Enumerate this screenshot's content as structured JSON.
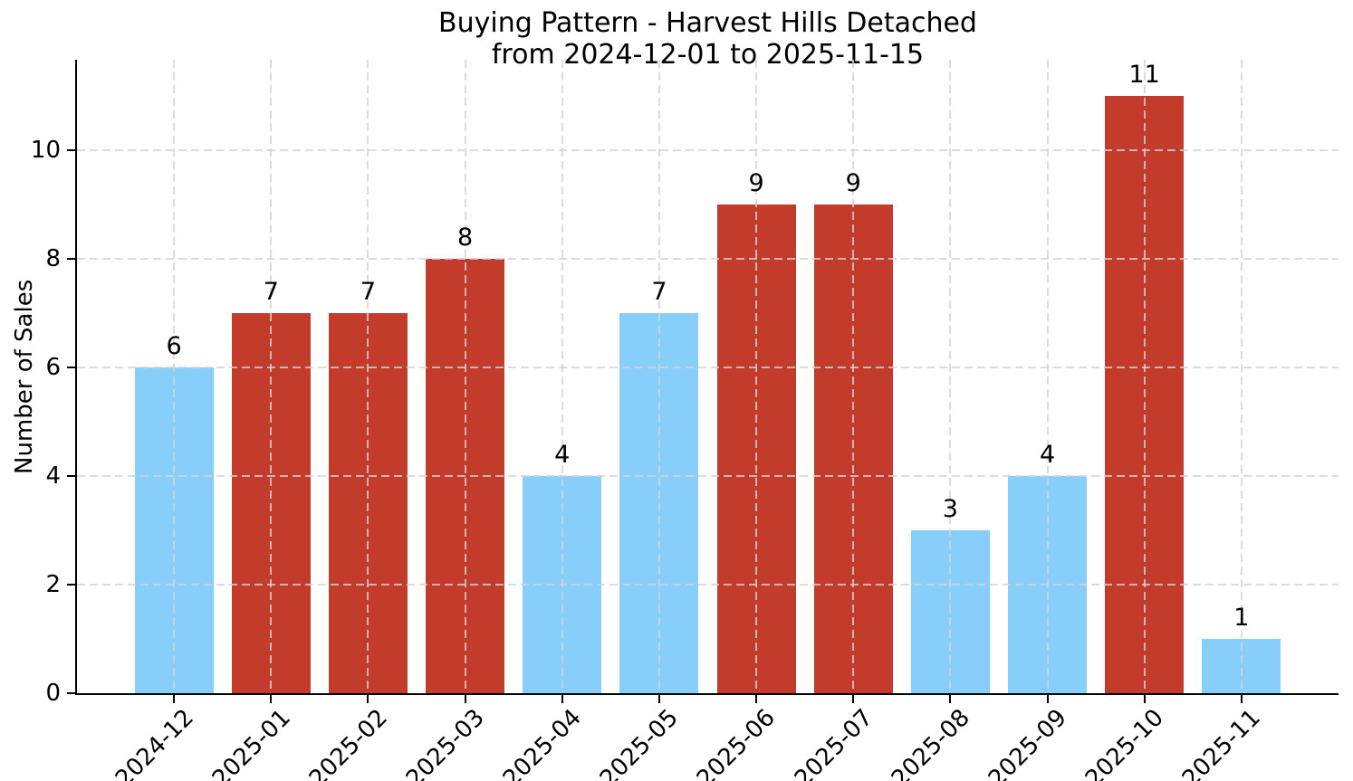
{
  "chart_data": {
    "type": "bar",
    "title": "Buying Pattern - Harvest Hills Detached",
    "subtitle": "from 2024-12-01 to 2025-11-15",
    "xlabel": "",
    "ylabel": "Number of Sales",
    "categories": [
      "2024-12",
      "2025-01",
      "2025-02",
      "2025-03",
      "2025-04",
      "2025-05",
      "2025-06",
      "2025-07",
      "2025-08",
      "2025-09",
      "2025-10",
      "2025-11"
    ],
    "values": [
      6,
      7,
      7,
      8,
      4,
      7,
      9,
      9,
      3,
      4,
      11,
      1
    ],
    "value_labels": [
      "6",
      "7",
      "7",
      "8",
      "4",
      "7",
      "9",
      "9",
      "3",
      "4",
      "11",
      "1"
    ],
    "bar_colors": [
      "#87CEFA",
      "#C23B2B",
      "#C23B2B",
      "#C23B2B",
      "#87CEFA",
      "#87CEFA",
      "#C23B2B",
      "#C23B2B",
      "#87CEFA",
      "#87CEFA",
      "#C23B2B",
      "#87CEFA"
    ],
    "palette": {
      "light_blue": "#87CEFA",
      "brick_red": "#C23B2B"
    },
    "yticks": [
      0,
      2,
      4,
      6,
      8,
      10
    ],
    "ylim": [
      0,
      11.67
    ],
    "grid": {
      "horizontal": true,
      "vertical": true,
      "style": "dashed",
      "color": "#d3d3d3"
    },
    "legend": "none",
    "x_tick_rotation_deg": 45
  }
}
